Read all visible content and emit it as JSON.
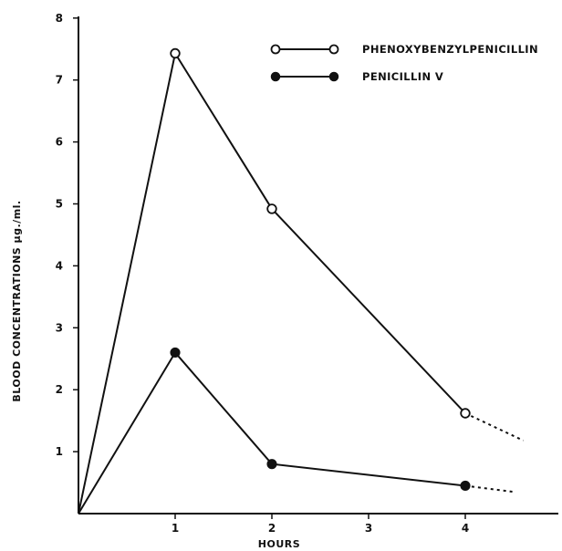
{
  "chart_data": {
    "type": "line",
    "xlabel": "HOURS",
    "ylabel": "BLOOD CONCENTRATIONS μg./ml.",
    "xlim": [
      0,
      5
    ],
    "ylim": [
      0,
      8
    ],
    "x_ticks": [
      1,
      2,
      3,
      4
    ],
    "x_tick_labels": [
      "1",
      "2",
      "3",
      "4"
    ],
    "y_ticks": [
      1,
      2,
      3,
      4,
      5,
      6,
      7,
      8
    ],
    "y_tick_labels": [
      "1",
      "2",
      "3",
      "4",
      "5",
      "6",
      "7",
      "8"
    ],
    "grid": false,
    "legend_position": "top-right",
    "series": [
      {
        "name": "PHENOXYBENZYLPENICILLIN",
        "marker": "open-circle",
        "x": [
          0,
          1,
          2,
          4
        ],
        "y": [
          0,
          7.43,
          4.92,
          1.62
        ],
        "extrapolated": {
          "x": [
            4,
            4.6
          ],
          "y": [
            1.62,
            1.18
          ]
        }
      },
      {
        "name": "PENICILLIN V",
        "marker": "filled-circle",
        "x": [
          0,
          1,
          2,
          4
        ],
        "y": [
          0,
          2.6,
          0.8,
          0.45
        ],
        "extrapolated": {
          "x": [
            4,
            4.5
          ],
          "y": [
            0.45,
            0.35
          ]
        }
      }
    ]
  },
  "colors": {
    "ink": "#111111",
    "background": "#ffffff"
  }
}
